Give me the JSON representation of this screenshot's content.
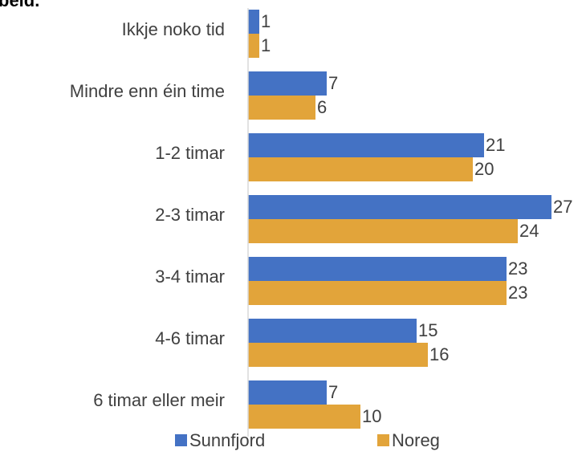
{
  "chart_data": {
    "type": "bar",
    "orientation": "horizontal",
    "title": "beid.",
    "categories": [
      "Ikkje noko tid",
      "Mindre enn éin time",
      "1-2 timar",
      "2-3 timar",
      "3-4 timar",
      "4-6 timar",
      "6 timar eller meir"
    ],
    "series": [
      {
        "name": "Sunnfjord",
        "color": "#4472c4",
        "values": [
          1,
          7,
          21,
          27,
          23,
          15,
          7
        ]
      },
      {
        "name": "Noreg",
        "color": "#e2a43a",
        "values": [
          1,
          6,
          20,
          24,
          23,
          16,
          10
        ]
      }
    ],
    "xlim": [
      0,
      28
    ],
    "legend": "bottom"
  }
}
